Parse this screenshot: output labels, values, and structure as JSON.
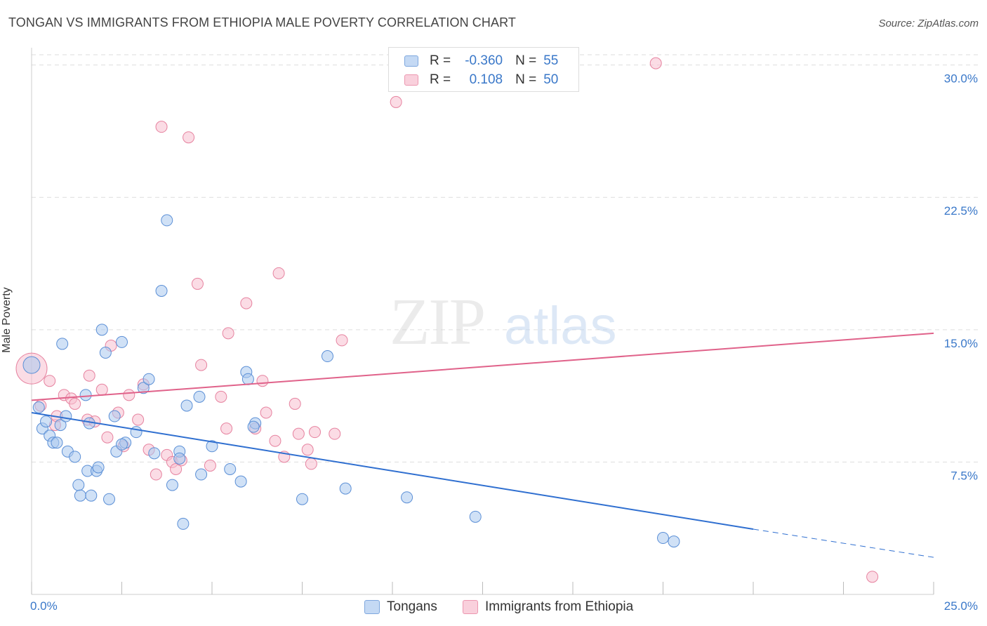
{
  "header": {
    "title": "TONGAN VS IMMIGRANTS FROM ETHIOPIA MALE POVERTY CORRELATION CHART",
    "source": "Source: ZipAtlas.com"
  },
  "watermark": {
    "zip": "ZIP",
    "atlas": "atlas"
  },
  "legend": {
    "tongans": {
      "r_label": "R =",
      "r_value": "-0.360",
      "n_label": "N =",
      "n_value": "55"
    },
    "ethiopia": {
      "r_label": "R =",
      "r_value": "0.108",
      "n_label": "N =",
      "n_value": "50"
    }
  },
  "bottom_legend": {
    "tongans": "Tongans",
    "ethiopia": "Immigrants from Ethiopia"
  },
  "colors": {
    "tongans_fill": "#aac8ee",
    "tongans_stroke": "#5b8fd6",
    "tongans_line": "#2f6fd0",
    "ethiopia_fill": "#f7bfd0",
    "ethiopia_stroke": "#e6829f",
    "ethiopia_line": "#e0628a",
    "tick_label": "#3a78c9",
    "grid": "#dddddd"
  },
  "chart_data": {
    "type": "scatter",
    "title": "TONGAN VS IMMIGRANTS FROM ETHIOPIA MALE POVERTY CORRELATION CHART",
    "xlabel": "",
    "ylabel": "Male Poverty",
    "xlim": [
      0,
      25
    ],
    "ylim": [
      0,
      30.9
    ],
    "x_ticks": [
      "0.0%",
      "25.0%"
    ],
    "y_ticks": [
      {
        "value": 7.5,
        "label": "7.5%"
      },
      {
        "value": 15.0,
        "label": "15.0%"
      },
      {
        "value": 22.5,
        "label": "22.5%"
      },
      {
        "value": 30.0,
        "label": "30.0%"
      }
    ],
    "grid": true,
    "legend_position": "top-center",
    "series": [
      {
        "name": "Tongans",
        "R": -0.36,
        "N": 55,
        "trend": {
          "x0": 0,
          "y0": 10.3,
          "x1": 20.0,
          "y1": 3.7,
          "dash_to_x": 25.0,
          "dash_to_y": 2.1
        },
        "points": [
          [
            0.0,
            13.0
          ],
          [
            0.2,
            10.6
          ],
          [
            0.3,
            9.4
          ],
          [
            0.4,
            9.8
          ],
          [
            0.5,
            9.0
          ],
          [
            0.6,
            8.6
          ],
          [
            0.7,
            8.6
          ],
          [
            0.8,
            9.6
          ],
          [
            0.85,
            14.2
          ],
          [
            0.95,
            10.1
          ],
          [
            1.0,
            8.1
          ],
          [
            1.2,
            7.8
          ],
          [
            1.3,
            6.2
          ],
          [
            1.35,
            5.6
          ],
          [
            1.5,
            11.3
          ],
          [
            1.6,
            9.7
          ],
          [
            1.55,
            7.0
          ],
          [
            1.65,
            5.6
          ],
          [
            1.8,
            7.0
          ],
          [
            1.85,
            7.2
          ],
          [
            1.95,
            15.0
          ],
          [
            2.05,
            13.7
          ],
          [
            2.15,
            5.4
          ],
          [
            2.3,
            10.1
          ],
          [
            2.35,
            8.1
          ],
          [
            2.5,
            14.3
          ],
          [
            2.6,
            8.6
          ],
          [
            2.5,
            8.5
          ],
          [
            2.9,
            9.2
          ],
          [
            3.1,
            11.7
          ],
          [
            3.25,
            12.2
          ],
          [
            3.4,
            8.0
          ],
          [
            3.6,
            17.2
          ],
          [
            3.75,
            21.2
          ],
          [
            3.9,
            6.2
          ],
          [
            4.1,
            8.1
          ],
          [
            4.2,
            4.0
          ],
          [
            4.3,
            10.7
          ],
          [
            4.65,
            11.2
          ],
          [
            4.7,
            6.8
          ],
          [
            5.0,
            8.4
          ],
          [
            5.5,
            7.1
          ],
          [
            5.8,
            6.4
          ],
          [
            5.95,
            12.6
          ],
          [
            6.0,
            12.2
          ],
          [
            6.2,
            9.7
          ],
          [
            7.5,
            5.4
          ],
          [
            8.2,
            13.5
          ],
          [
            8.7,
            6.0
          ],
          [
            10.4,
            5.5
          ],
          [
            12.3,
            4.4
          ],
          [
            17.5,
            3.2
          ],
          [
            17.8,
            3.0
          ],
          [
            6.15,
            9.5
          ],
          [
            4.1,
            7.7
          ]
        ]
      },
      {
        "name": "Immigrants from Ethiopia",
        "R": 0.108,
        "N": 50,
        "trend": {
          "x0": 0,
          "y0": 11.0,
          "x1": 25.0,
          "y1": 14.8
        },
        "points": [
          [
            0.0,
            12.8
          ],
          [
            0.25,
            10.7
          ],
          [
            0.5,
            12.1
          ],
          [
            0.65,
            9.6
          ],
          [
            0.7,
            10.1
          ],
          [
            0.9,
            11.3
          ],
          [
            1.1,
            11.1
          ],
          [
            1.2,
            10.8
          ],
          [
            1.55,
            9.9
          ],
          [
            1.6,
            12.4
          ],
          [
            1.75,
            9.8
          ],
          [
            1.95,
            11.6
          ],
          [
            2.1,
            8.9
          ],
          [
            2.2,
            14.1
          ],
          [
            2.4,
            10.3
          ],
          [
            2.55,
            8.4
          ],
          [
            2.7,
            11.3
          ],
          [
            2.95,
            9.9
          ],
          [
            3.1,
            11.9
          ],
          [
            3.25,
            8.2
          ],
          [
            3.45,
            6.8
          ],
          [
            3.6,
            26.5
          ],
          [
            3.75,
            7.9
          ],
          [
            3.9,
            7.5
          ],
          [
            4.0,
            7.1
          ],
          [
            4.15,
            7.6
          ],
          [
            4.35,
            25.9
          ],
          [
            4.6,
            17.6
          ],
          [
            4.7,
            13.0
          ],
          [
            4.95,
            7.3
          ],
          [
            5.25,
            11.2
          ],
          [
            5.4,
            9.4
          ],
          [
            5.45,
            14.8
          ],
          [
            5.95,
            16.5
          ],
          [
            6.2,
            9.4
          ],
          [
            6.4,
            12.1
          ],
          [
            6.5,
            10.3
          ],
          [
            6.75,
            8.7
          ],
          [
            6.85,
            18.2
          ],
          [
            7.0,
            7.8
          ],
          [
            7.3,
            10.8
          ],
          [
            7.4,
            9.1
          ],
          [
            7.65,
            8.2
          ],
          [
            7.75,
            7.4
          ],
          [
            7.85,
            9.2
          ],
          [
            8.4,
            9.1
          ],
          [
            8.6,
            14.4
          ],
          [
            10.1,
            27.9
          ],
          [
            17.3,
            30.1
          ],
          [
            23.3,
            1.0
          ]
        ]
      }
    ]
  }
}
